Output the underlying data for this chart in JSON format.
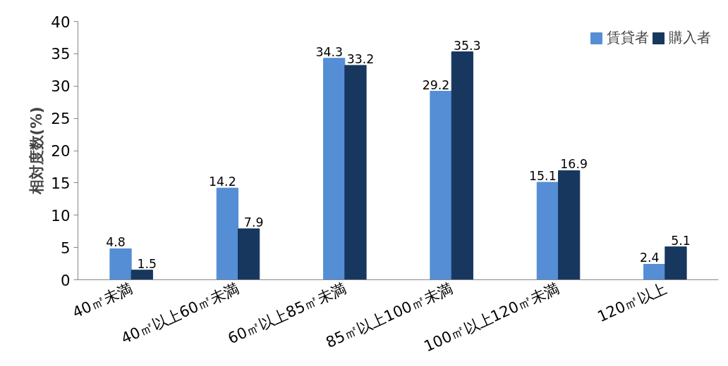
{
  "chart_data": {
    "type": "bar",
    "ylabel": "相対度数(%)",
    "categories": [
      "40㎡未満",
      "40㎡以上60㎡未満",
      "60㎡以上85㎡未満",
      "85㎡以上100㎡未満",
      "100㎡以上120㎡未満",
      "120㎡以上"
    ],
    "series": [
      {
        "name": "賃貸者",
        "color": "#558ed5",
        "values": [
          4.8,
          14.2,
          34.3,
          29.2,
          15.1,
          2.4
        ]
      },
      {
        "name": "購入者",
        "color": "#17375e",
        "values": [
          1.5,
          7.9,
          33.2,
          35.3,
          16.9,
          5.1
        ]
      }
    ],
    "ylim": [
      0,
      40
    ],
    "yticks": [
      0,
      5,
      10,
      15,
      20,
      25,
      30,
      35,
      40
    ],
    "data_labels": true,
    "grid": false,
    "legend": "top right"
  }
}
